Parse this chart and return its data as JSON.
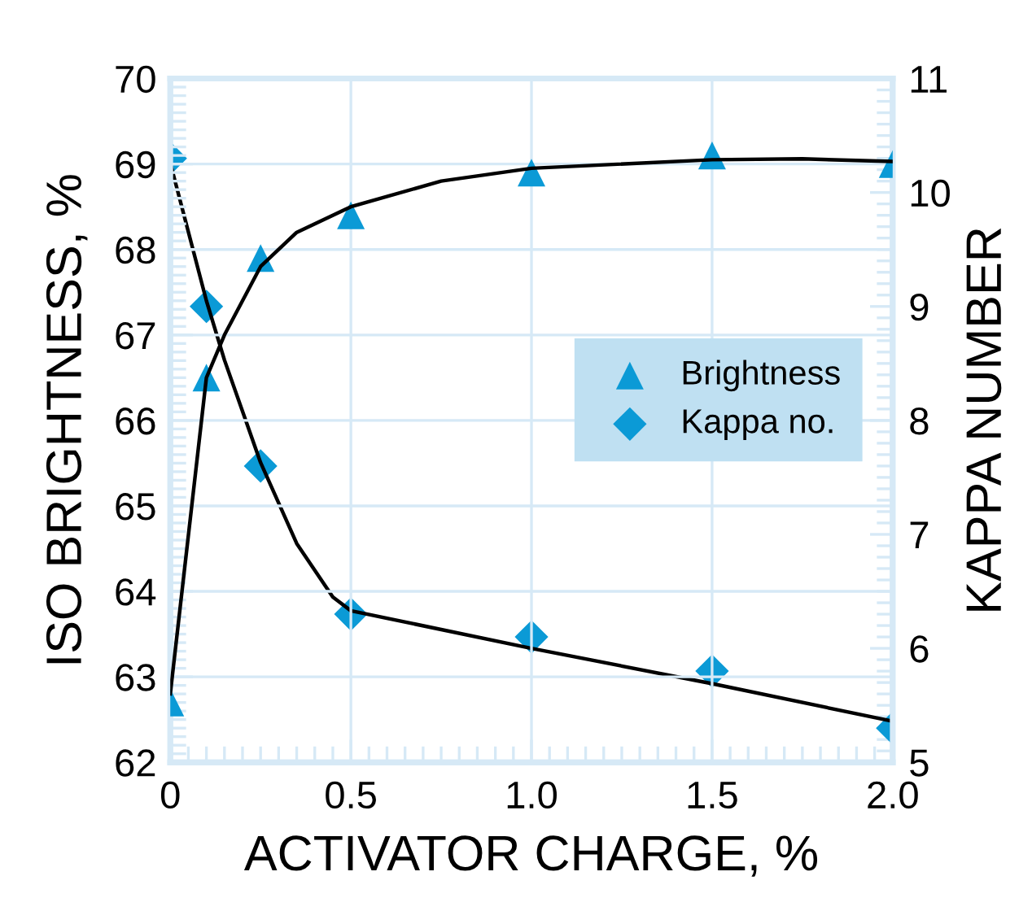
{
  "chart_data": {
    "type": "scatter",
    "xlabel": "ACTIVATOR CHARGE, %",
    "ylabel": "ISO BRIGHTNESS, %",
    "y2label": "KAPPA NUMBER",
    "xlim": [
      0,
      2.0
    ],
    "xticks": [
      0,
      {
        "value": 0.5,
        "label": "0.5"
      },
      {
        "value": 1.0,
        "label": "1.0"
      },
      {
        "value": 1.5,
        "label": "1.5"
      },
      {
        "value": 2.0,
        "label": "2.0"
      }
    ],
    "ylim": [
      62,
      70
    ],
    "yticks": [
      62,
      63,
      64,
      65,
      66,
      67,
      68,
      69,
      70
    ],
    "y2lim": [
      5,
      11
    ],
    "y2ticks": [
      5,
      6,
      7,
      8,
      9,
      10,
      11
    ],
    "grid": true,
    "legend": "right",
    "series": [
      {
        "type": "line",
        "color": "#000000",
        "marker": "none",
        "x": [
          0,
          0.1,
          0.15,
          0.25,
          0.35,
          0.5,
          0.75,
          1.0,
          1.5,
          1.75,
          2.0
        ],
        "values": [
          62.8,
          66.5,
          67.0,
          67.8,
          68.2,
          68.5,
          68.8,
          68.95,
          69.05,
          69.06,
          69.03
        ]
      },
      {
        "type": "line",
        "axis": "y2",
        "color": "#000000",
        "marker": "none",
        "x": [
          0,
          0.1,
          0.15,
          0.25,
          0.35,
          0.45,
          0.5,
          1.0,
          1.5,
          2.0
        ],
        "values": [
          10.26,
          9.05,
          8.53,
          7.63,
          6.92,
          6.45,
          6.33,
          6.0,
          5.69,
          5.36
        ]
      },
      {
        "name": "Brightness",
        "color": "#0b9ad6",
        "marker": "triangle",
        "x": [
          0,
          0.1,
          0.25,
          0.5,
          1.0,
          1.5,
          2.0
        ],
        "values": [
          62.7,
          66.5,
          67.9,
          68.4,
          68.9,
          69.1,
          69.0
        ]
      },
      {
        "name": "Kappa no.",
        "axis": "y2",
        "color": "#0b9ad6",
        "marker": "diamond",
        "x": [
          0,
          0.1,
          0.25,
          0.5,
          1.0,
          1.5,
          2.0
        ],
        "values": [
          10.3,
          9.0,
          7.6,
          6.3,
          6.1,
          5.8,
          5.3
        ]
      }
    ]
  }
}
